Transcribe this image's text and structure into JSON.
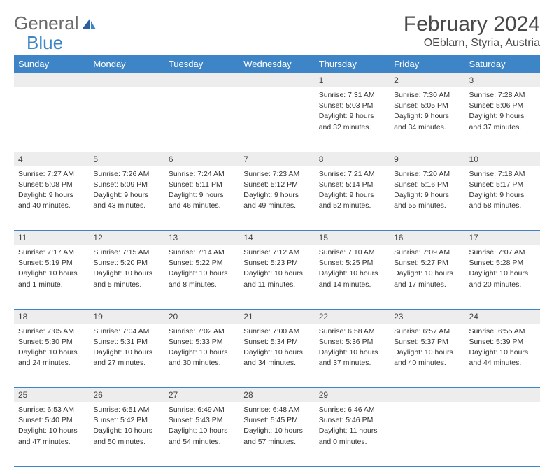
{
  "logo": {
    "text1": "General",
    "text2": "Blue"
  },
  "title": "February 2024",
  "location": "OEblarn, Styria, Austria",
  "colors": {
    "header_bg": "#3d85c6",
    "header_text": "#ffffff",
    "daynum_bg": "#ededed",
    "border": "#3d85c6",
    "body_text": "#333333",
    "title_text": "#4a4a4a",
    "logo_gray": "#6b6b6b",
    "logo_blue": "#3d85c6"
  },
  "day_headers": [
    "Sunday",
    "Monday",
    "Tuesday",
    "Wednesday",
    "Thursday",
    "Friday",
    "Saturday"
  ],
  "weeks": [
    {
      "nums": [
        "",
        "",
        "",
        "",
        "1",
        "2",
        "3"
      ],
      "cells": [
        null,
        null,
        null,
        null,
        {
          "sunrise": "Sunrise: 7:31 AM",
          "sunset": "Sunset: 5:03 PM",
          "dl1": "Daylight: 9 hours",
          "dl2": "and 32 minutes."
        },
        {
          "sunrise": "Sunrise: 7:30 AM",
          "sunset": "Sunset: 5:05 PM",
          "dl1": "Daylight: 9 hours",
          "dl2": "and 34 minutes."
        },
        {
          "sunrise": "Sunrise: 7:28 AM",
          "sunset": "Sunset: 5:06 PM",
          "dl1": "Daylight: 9 hours",
          "dl2": "and 37 minutes."
        }
      ]
    },
    {
      "nums": [
        "4",
        "5",
        "6",
        "7",
        "8",
        "9",
        "10"
      ],
      "cells": [
        {
          "sunrise": "Sunrise: 7:27 AM",
          "sunset": "Sunset: 5:08 PM",
          "dl1": "Daylight: 9 hours",
          "dl2": "and 40 minutes."
        },
        {
          "sunrise": "Sunrise: 7:26 AM",
          "sunset": "Sunset: 5:09 PM",
          "dl1": "Daylight: 9 hours",
          "dl2": "and 43 minutes."
        },
        {
          "sunrise": "Sunrise: 7:24 AM",
          "sunset": "Sunset: 5:11 PM",
          "dl1": "Daylight: 9 hours",
          "dl2": "and 46 minutes."
        },
        {
          "sunrise": "Sunrise: 7:23 AM",
          "sunset": "Sunset: 5:12 PM",
          "dl1": "Daylight: 9 hours",
          "dl2": "and 49 minutes."
        },
        {
          "sunrise": "Sunrise: 7:21 AM",
          "sunset": "Sunset: 5:14 PM",
          "dl1": "Daylight: 9 hours",
          "dl2": "and 52 minutes."
        },
        {
          "sunrise": "Sunrise: 7:20 AM",
          "sunset": "Sunset: 5:16 PM",
          "dl1": "Daylight: 9 hours",
          "dl2": "and 55 minutes."
        },
        {
          "sunrise": "Sunrise: 7:18 AM",
          "sunset": "Sunset: 5:17 PM",
          "dl1": "Daylight: 9 hours",
          "dl2": "and 58 minutes."
        }
      ]
    },
    {
      "nums": [
        "11",
        "12",
        "13",
        "14",
        "15",
        "16",
        "17"
      ],
      "cells": [
        {
          "sunrise": "Sunrise: 7:17 AM",
          "sunset": "Sunset: 5:19 PM",
          "dl1": "Daylight: 10 hours",
          "dl2": "and 1 minute."
        },
        {
          "sunrise": "Sunrise: 7:15 AM",
          "sunset": "Sunset: 5:20 PM",
          "dl1": "Daylight: 10 hours",
          "dl2": "and 5 minutes."
        },
        {
          "sunrise": "Sunrise: 7:14 AM",
          "sunset": "Sunset: 5:22 PM",
          "dl1": "Daylight: 10 hours",
          "dl2": "and 8 minutes."
        },
        {
          "sunrise": "Sunrise: 7:12 AM",
          "sunset": "Sunset: 5:23 PM",
          "dl1": "Daylight: 10 hours",
          "dl2": "and 11 minutes."
        },
        {
          "sunrise": "Sunrise: 7:10 AM",
          "sunset": "Sunset: 5:25 PM",
          "dl1": "Daylight: 10 hours",
          "dl2": "and 14 minutes."
        },
        {
          "sunrise": "Sunrise: 7:09 AM",
          "sunset": "Sunset: 5:27 PM",
          "dl1": "Daylight: 10 hours",
          "dl2": "and 17 minutes."
        },
        {
          "sunrise": "Sunrise: 7:07 AM",
          "sunset": "Sunset: 5:28 PM",
          "dl1": "Daylight: 10 hours",
          "dl2": "and 20 minutes."
        }
      ]
    },
    {
      "nums": [
        "18",
        "19",
        "20",
        "21",
        "22",
        "23",
        "24"
      ],
      "cells": [
        {
          "sunrise": "Sunrise: 7:05 AM",
          "sunset": "Sunset: 5:30 PM",
          "dl1": "Daylight: 10 hours",
          "dl2": "and 24 minutes."
        },
        {
          "sunrise": "Sunrise: 7:04 AM",
          "sunset": "Sunset: 5:31 PM",
          "dl1": "Daylight: 10 hours",
          "dl2": "and 27 minutes."
        },
        {
          "sunrise": "Sunrise: 7:02 AM",
          "sunset": "Sunset: 5:33 PM",
          "dl1": "Daylight: 10 hours",
          "dl2": "and 30 minutes."
        },
        {
          "sunrise": "Sunrise: 7:00 AM",
          "sunset": "Sunset: 5:34 PM",
          "dl1": "Daylight: 10 hours",
          "dl2": "and 34 minutes."
        },
        {
          "sunrise": "Sunrise: 6:58 AM",
          "sunset": "Sunset: 5:36 PM",
          "dl1": "Daylight: 10 hours",
          "dl2": "and 37 minutes."
        },
        {
          "sunrise": "Sunrise: 6:57 AM",
          "sunset": "Sunset: 5:37 PM",
          "dl1": "Daylight: 10 hours",
          "dl2": "and 40 minutes."
        },
        {
          "sunrise": "Sunrise: 6:55 AM",
          "sunset": "Sunset: 5:39 PM",
          "dl1": "Daylight: 10 hours",
          "dl2": "and 44 minutes."
        }
      ]
    },
    {
      "nums": [
        "25",
        "26",
        "27",
        "28",
        "29",
        "",
        ""
      ],
      "cells": [
        {
          "sunrise": "Sunrise: 6:53 AM",
          "sunset": "Sunset: 5:40 PM",
          "dl1": "Daylight: 10 hours",
          "dl2": "and 47 minutes."
        },
        {
          "sunrise": "Sunrise: 6:51 AM",
          "sunset": "Sunset: 5:42 PM",
          "dl1": "Daylight: 10 hours",
          "dl2": "and 50 minutes."
        },
        {
          "sunrise": "Sunrise: 6:49 AM",
          "sunset": "Sunset: 5:43 PM",
          "dl1": "Daylight: 10 hours",
          "dl2": "and 54 minutes."
        },
        {
          "sunrise": "Sunrise: 6:48 AM",
          "sunset": "Sunset: 5:45 PM",
          "dl1": "Daylight: 10 hours",
          "dl2": "and 57 minutes."
        },
        {
          "sunrise": "Sunrise: 6:46 AM",
          "sunset": "Sunset: 5:46 PM",
          "dl1": "Daylight: 11 hours",
          "dl2": "and 0 minutes."
        },
        null,
        null
      ]
    }
  ]
}
